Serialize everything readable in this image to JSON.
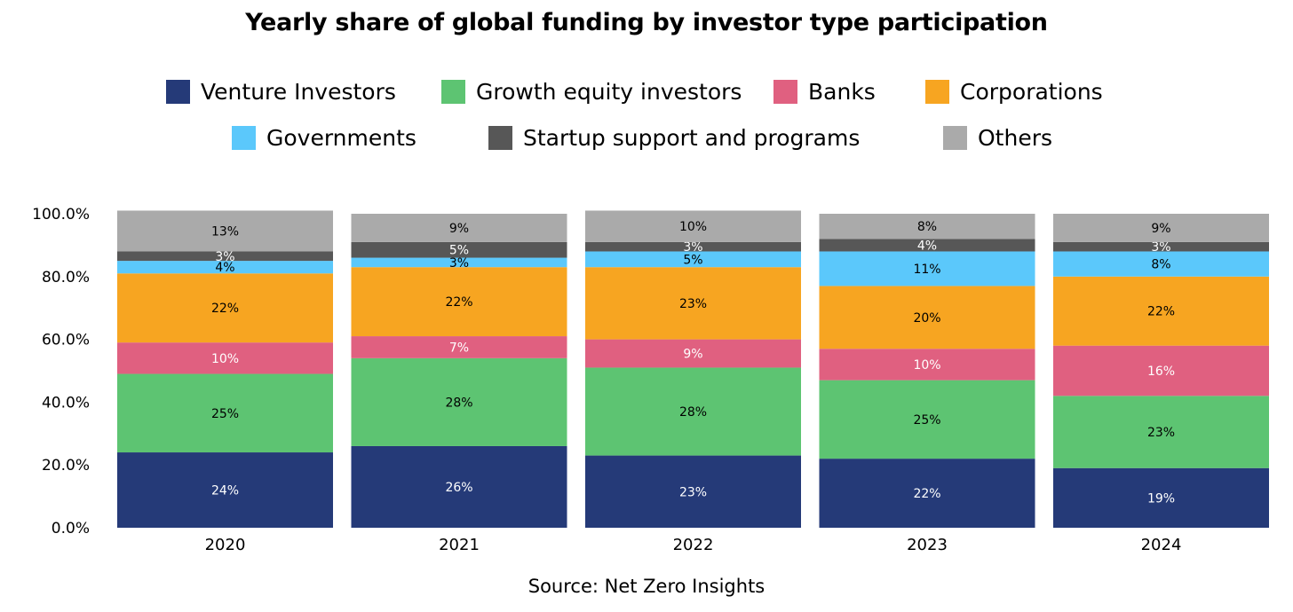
{
  "title": "Yearly share of global funding by investor type participation",
  "source": "Source: Net Zero Insights",
  "chart_data": {
    "type": "bar",
    "stacked": true,
    "title": "Yearly share of global funding by investor type participation",
    "categories": [
      "2020",
      "2021",
      "2022",
      "2023",
      "2024"
    ],
    "ylim": [
      0,
      100
    ],
    "y_ticks": [
      "0.0%",
      "20.0%",
      "40.0%",
      "60.0%",
      "80.0%",
      "100.0%"
    ],
    "legend_position": "top",
    "grid": false,
    "series": [
      {
        "name": "Venture Investors",
        "color": "#253a78",
        "label_color": "#ffffff",
        "values": [
          24,
          26,
          23,
          22,
          19
        ],
        "labels": [
          "24%",
          "26%",
          "23%",
          "22%",
          "19%"
        ]
      },
      {
        "name": "Growth equity investors",
        "color": "#5dc472",
        "label_color": "#000000",
        "values": [
          25,
          28,
          28,
          25,
          23
        ],
        "labels": [
          "25%",
          "28%",
          "28%",
          "25%",
          "23%"
        ]
      },
      {
        "name": "Banks",
        "color": "#e06080",
        "label_color": "#ffffff",
        "values": [
          10,
          7,
          9,
          10,
          16
        ],
        "labels": [
          "10%",
          "7%",
          "9%",
          "10%",
          "16%"
        ]
      },
      {
        "name": "Corporations",
        "color": "#f7a521",
        "label_color": "#000000",
        "values": [
          22,
          22,
          23,
          20,
          22
        ],
        "labels": [
          "22%",
          "22%",
          "23%",
          "20%",
          "22%"
        ]
      },
      {
        "name": "Governments",
        "color": "#5bc8fb",
        "label_color": "#000000",
        "values": [
          4,
          3,
          5,
          11,
          8
        ],
        "labels": [
          "4%",
          "3%",
          "5%",
          "11%",
          "8%"
        ]
      },
      {
        "name": "Startup support and programs",
        "color": "#575757",
        "label_color": "#ffffff",
        "values": [
          3,
          5,
          3,
          4,
          3
        ],
        "labels": [
          "3%",
          "5%",
          "3%",
          "4%",
          "3%"
        ]
      },
      {
        "name": "Others",
        "color": "#aaaaaa",
        "label_color": "#000000",
        "values": [
          13,
          9,
          10,
          8,
          9
        ],
        "labels": [
          "13%",
          "9%",
          "10%",
          "8%",
          "9%"
        ]
      }
    ]
  }
}
